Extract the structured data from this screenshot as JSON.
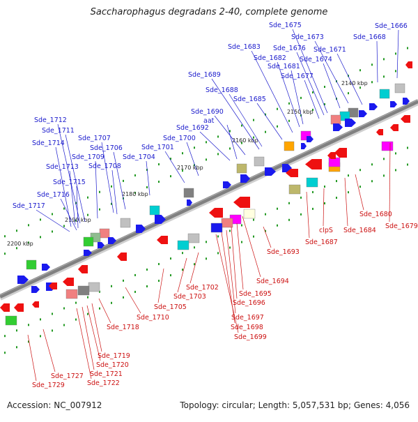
{
  "title": "Saccharophagus degradans 2-40, complete genome",
  "accession": "Accession: NC_007912",
  "summary": "Topology: circular; Length: 5,057,531 bp; Genes: 4,056",
  "colors": {
    "forward_label": "#1a1acc",
    "reverse_label": "#cc1111",
    "forward_gene": "#1a1aee",
    "reverse_gene": "#ee1111",
    "backbone": "#808080",
    "tick_dot": "#229922"
  },
  "kbp_ticks": [
    "2140 kbp",
    "2150 kbp",
    "2160 kbp",
    "2170 kbp",
    "2180 kbp",
    "2190 kbp",
    "2200 kbp"
  ],
  "forward_labels": [
    "Sde_1666",
    "Sde_1668",
    "Sde_1671",
    "Sde_1673",
    "Sde_1674",
    "Sde_1675",
    "Sde_1676",
    "Sde_1677",
    "Sde_1681",
    "Sde_1682",
    "Sde_1683",
    "Sde_1685",
    "Sde_1688",
    "Sde_1689",
    "Sde_1690",
    "aat",
    "Sde_1692",
    "Sde_1700",
    "Sde_1701",
    "Sde_1704",
    "Sde_1706",
    "Sde_1707",
    "Sde_1708",
    "Sde_1709",
    "Sde_1711",
    "Sde_1712",
    "Sde_1713",
    "Sde_1714",
    "Sde_1715",
    "Sde_1716",
    "Sde_1717"
  ],
  "reverse_labels": [
    "Sde_1679",
    "Sde_1680",
    "Sde_1684",
    "clpS",
    "Sde_1687",
    "Sde_1693",
    "Sde_1694",
    "Sde_1695",
    "Sde_1696",
    "Sde_1697",
    "Sde_1698",
    "Sde_1699",
    "Sde_1702",
    "Sde_1703",
    "Sde_1705",
    "Sde_1710",
    "Sde_1718",
    "Sde_1719",
    "Sde_1720",
    "Sde_1721",
    "Sde_1722",
    "Sde_1727",
    "Sde_1729"
  ]
}
